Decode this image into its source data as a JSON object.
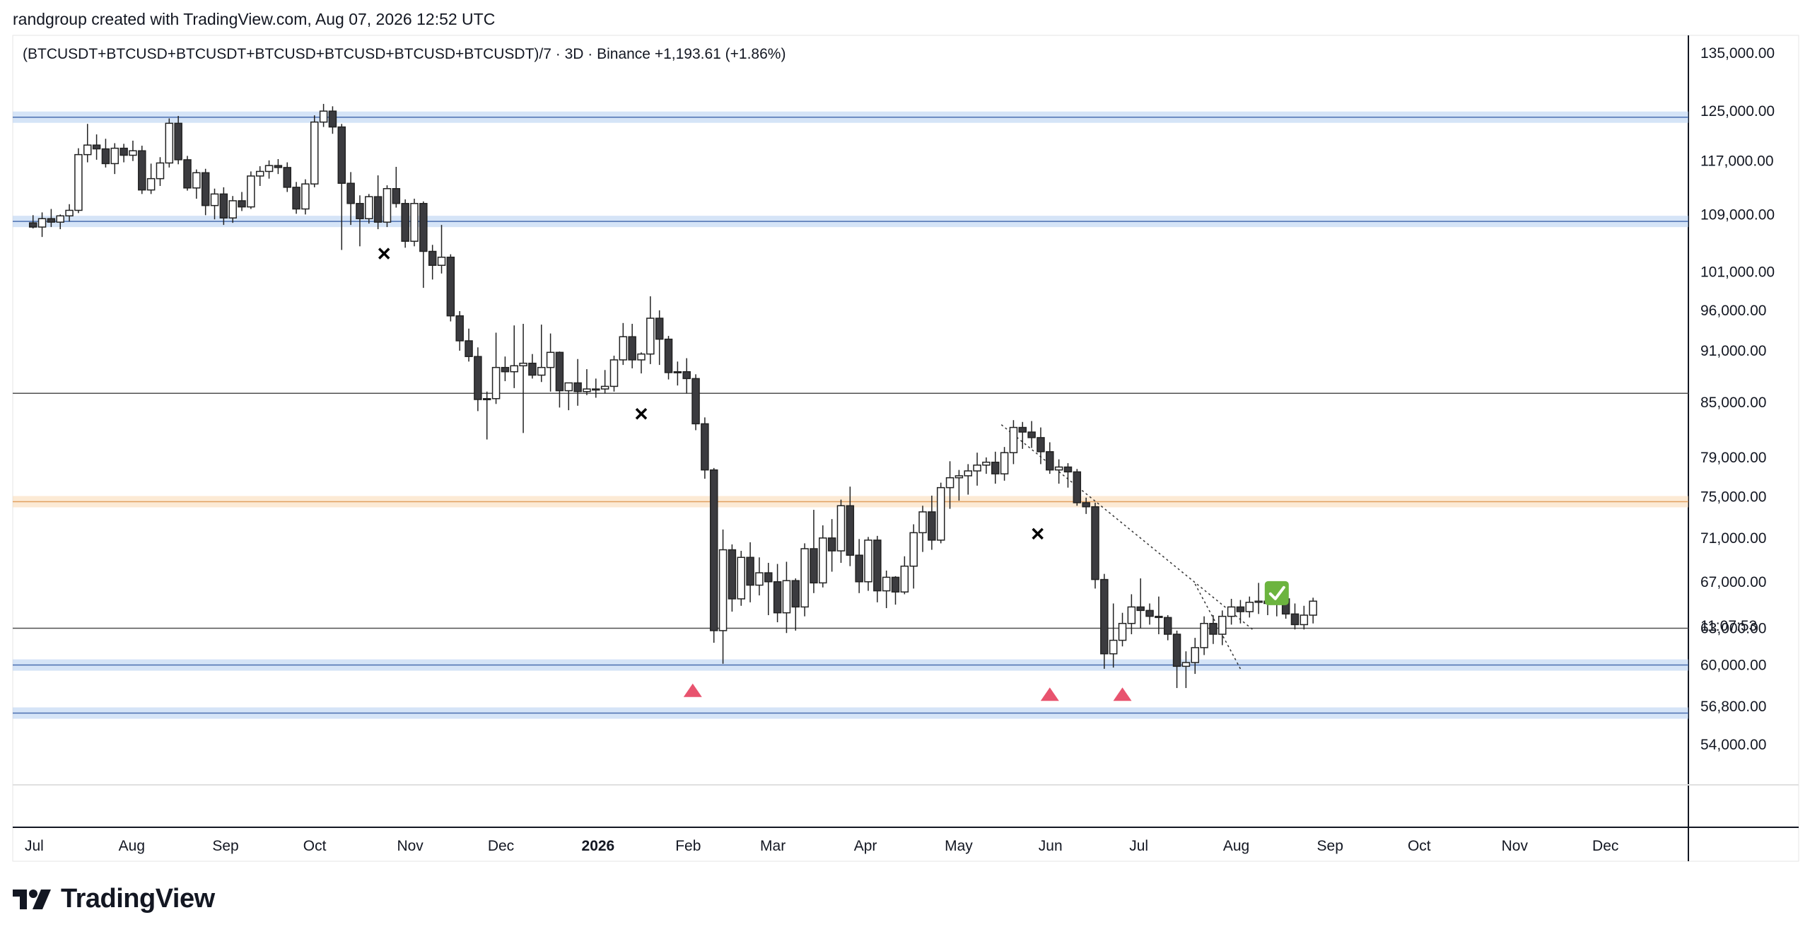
{
  "header": {
    "created_by": "randgroup created with TradingView.com, Aug 07, 2026 12:52 UTC"
  },
  "brand": {
    "name": "TradingView"
  },
  "chart_data": {
    "type": "candlestick",
    "legend": "(BTCUSDT+BTCUSD+BTCUSDT+BTCUSD+BTCUSD+BTCUSD+BTCUSDT)/7 · 3D · Binance  +1,193.61 (+1.86%)",
    "price_axis_labels": [
      "135,000.00",
      "125,000.00",
      "117,000.00",
      "109,000.00",
      "101,000.00",
      "96,000.00",
      "91,000.00",
      "85,000.00",
      "79,000.00",
      "75,000.00",
      "71,000.00",
      "67,000.00",
      "63,000.00",
      "60,000.00",
      "56,800.00",
      "54,000.00"
    ],
    "countdown": "11:07:53",
    "time_axis_labels": [
      {
        "label": "Jul",
        "bold": false
      },
      {
        "label": "Aug",
        "bold": false
      },
      {
        "label": "Sep",
        "bold": false
      },
      {
        "label": "Oct",
        "bold": false
      },
      {
        "label": "Nov",
        "bold": false
      },
      {
        "label": "Dec",
        "bold": false
      },
      {
        "label": "2026",
        "bold": true
      },
      {
        "label": "Feb",
        "bold": false
      },
      {
        "label": "Mar",
        "bold": false
      },
      {
        "label": "Apr",
        "bold": false
      },
      {
        "label": "May",
        "bold": false
      },
      {
        "label": "Jun",
        "bold": false
      },
      {
        "label": "Jul",
        "bold": false
      },
      {
        "label": "Aug",
        "bold": false
      },
      {
        "label": "Sep",
        "bold": false
      },
      {
        "label": "Oct",
        "bold": false
      },
      {
        "label": "Nov",
        "bold": false
      },
      {
        "label": "Dec",
        "bold": false
      }
    ],
    "price_scale": "log",
    "zones": [
      {
        "price": 124000,
        "type": "support-resistance",
        "color": "#b3cdf0"
      },
      {
        "price": 108000,
        "type": "support-resistance",
        "color": "#b3cdf0"
      },
      {
        "price": 74500,
        "type": "key-level",
        "color": "#f9d9b3"
      },
      {
        "price": 60000,
        "type": "support-resistance",
        "color": "#b3cdf0"
      },
      {
        "price": 56300,
        "type": "support-resistance",
        "color": "#b3cdf0"
      }
    ],
    "horizontal_lines": [
      86000,
      63000
    ],
    "markers": [
      {
        "kind": "x",
        "date": "2025-10-24",
        "price": 103500
      },
      {
        "kind": "x",
        "date": "2026-01-17",
        "price": 83700
      },
      {
        "kind": "x",
        "date": "2026-05-28",
        "price": 71400
      },
      {
        "kind": "triangle-up",
        "date": "2026-02-03",
        "price": 58000
      },
      {
        "kind": "triangle-up",
        "date": "2026-06-01",
        "price": 57700
      },
      {
        "kind": "triangle-up",
        "date": "2026-06-25",
        "price": 57700
      },
      {
        "kind": "check",
        "date": "2026-08-15",
        "price": 66000
      }
    ],
    "trendlines": [
      {
        "from": [
          "2026-05-16",
          82500
        ],
        "to": [
          "2026-08-07",
          62900
        ]
      },
      {
        "from": [
          "2026-07-19",
          66800
        ],
        "to": [
          "2026-08-03",
          59700
        ]
      }
    ],
    "candles": [
      {
        "o": 107800,
        "h": 108900,
        "l": 107000,
        "c": 107200
      },
      {
        "o": 107200,
        "h": 109300,
        "l": 105800,
        "c": 108400
      },
      {
        "o": 108400,
        "h": 109800,
        "l": 107200,
        "c": 107900
      },
      {
        "o": 107900,
        "h": 109000,
        "l": 106900,
        "c": 108800
      },
      {
        "o": 108800,
        "h": 110500,
        "l": 108000,
        "c": 109600
      },
      {
        "o": 109600,
        "h": 119000,
        "l": 109200,
        "c": 118000
      },
      {
        "o": 118000,
        "h": 122900,
        "l": 116800,
        "c": 119500
      },
      {
        "o": 119500,
        "h": 121200,
        "l": 117200,
        "c": 118900
      },
      {
        "o": 118900,
        "h": 120500,
        "l": 116000,
        "c": 116600
      },
      {
        "o": 116600,
        "h": 119800,
        "l": 115000,
        "c": 119000
      },
      {
        "o": 119000,
        "h": 119700,
        "l": 116800,
        "c": 117900
      },
      {
        "o": 117900,
        "h": 120200,
        "l": 117000,
        "c": 118600
      },
      {
        "o": 118600,
        "h": 119400,
        "l": 112000,
        "c": 112600
      },
      {
        "o": 112600,
        "h": 116600,
        "l": 112000,
        "c": 114300
      },
      {
        "o": 114300,
        "h": 117600,
        "l": 113200,
        "c": 116700
      },
      {
        "o": 116700,
        "h": 123800,
        "l": 116000,
        "c": 123000
      },
      {
        "o": 123000,
        "h": 124200,
        "l": 116500,
        "c": 117200
      },
      {
        "o": 117200,
        "h": 117800,
        "l": 112500,
        "c": 112900
      },
      {
        "o": 112900,
        "h": 115700,
        "l": 111300,
        "c": 115200
      },
      {
        "o": 115200,
        "h": 115800,
        "l": 108900,
        "c": 110300
      },
      {
        "o": 110300,
        "h": 112800,
        "l": 108300,
        "c": 112000
      },
      {
        "o": 112000,
        "h": 113000,
        "l": 107500,
        "c": 108500
      },
      {
        "o": 108500,
        "h": 111700,
        "l": 107800,
        "c": 111000
      },
      {
        "o": 111000,
        "h": 112300,
        "l": 109500,
        "c": 110100
      },
      {
        "o": 110100,
        "h": 115400,
        "l": 109800,
        "c": 114700
      },
      {
        "o": 114700,
        "h": 116200,
        "l": 113200,
        "c": 115400
      },
      {
        "o": 115400,
        "h": 117100,
        "l": 114300,
        "c": 116300
      },
      {
        "o": 116300,
        "h": 117300,
        "l": 115000,
        "c": 116000
      },
      {
        "o": 116000,
        "h": 116800,
        "l": 112300,
        "c": 113000
      },
      {
        "o": 113000,
        "h": 113800,
        "l": 109100,
        "c": 109800
      },
      {
        "o": 109800,
        "h": 114200,
        "l": 109000,
        "c": 113500
      },
      {
        "o": 113500,
        "h": 124300,
        "l": 113000,
        "c": 123200
      },
      {
        "o": 123200,
        "h": 126200,
        "l": 122400,
        "c": 125000
      },
      {
        "o": 125000,
        "h": 125800,
        "l": 121300,
        "c": 122400
      },
      {
        "o": 122400,
        "h": 122900,
        "l": 104000,
        "c": 113600
      },
      {
        "o": 113600,
        "h": 115300,
        "l": 107500,
        "c": 110600
      },
      {
        "o": 110600,
        "h": 111800,
        "l": 104500,
        "c": 108400
      },
      {
        "o": 108400,
        "h": 112000,
        "l": 107700,
        "c": 111600
      },
      {
        "o": 111600,
        "h": 114800,
        "l": 106900,
        "c": 107900
      },
      {
        "o": 107900,
        "h": 113300,
        "l": 107200,
        "c": 112800
      },
      {
        "o": 112800,
        "h": 116100,
        "l": 110000,
        "c": 110600
      },
      {
        "o": 110600,
        "h": 111200,
        "l": 104300,
        "c": 105200
      },
      {
        "o": 105200,
        "h": 111300,
        "l": 104500,
        "c": 110600
      },
      {
        "o": 110600,
        "h": 110900,
        "l": 98900,
        "c": 103800
      },
      {
        "o": 103800,
        "h": 104700,
        "l": 100000,
        "c": 101900
      },
      {
        "o": 101900,
        "h": 107500,
        "l": 100800,
        "c": 103000
      },
      {
        "o": 103000,
        "h": 103400,
        "l": 94600,
        "c": 95300
      },
      {
        "o": 95300,
        "h": 95900,
        "l": 91000,
        "c": 92200
      },
      {
        "o": 92200,
        "h": 93700,
        "l": 89700,
        "c": 90300
      },
      {
        "o": 90300,
        "h": 91400,
        "l": 84000,
        "c": 85300
      },
      {
        "o": 85300,
        "h": 86200,
        "l": 80900,
        "c": 85400
      },
      {
        "o": 85400,
        "h": 93200,
        "l": 84800,
        "c": 89000
      },
      {
        "o": 89000,
        "h": 90300,
        "l": 87400,
        "c": 88500
      },
      {
        "o": 88500,
        "h": 94100,
        "l": 86600,
        "c": 89200
      },
      {
        "o": 89200,
        "h": 94300,
        "l": 81600,
        "c": 89500
      },
      {
        "o": 89500,
        "h": 90600,
        "l": 87700,
        "c": 88100
      },
      {
        "o": 88100,
        "h": 94200,
        "l": 87300,
        "c": 89000
      },
      {
        "o": 89000,
        "h": 93100,
        "l": 86200,
        "c": 90800
      },
      {
        "o": 90800,
        "h": 90900,
        "l": 84400,
        "c": 86300
      },
      {
        "o": 86300,
        "h": 86900,
        "l": 84100,
        "c": 87200
      },
      {
        "o": 87200,
        "h": 90000,
        "l": 84600,
        "c": 86200
      },
      {
        "o": 86200,
        "h": 88800,
        "l": 85800,
        "c": 86500
      },
      {
        "o": 86500,
        "h": 87700,
        "l": 85500,
        "c": 86500
      },
      {
        "o": 86500,
        "h": 88700,
        "l": 86000,
        "c": 86800
      },
      {
        "o": 86800,
        "h": 90400,
        "l": 86200,
        "c": 89900
      },
      {
        "o": 89900,
        "h": 94400,
        "l": 89300,
        "c": 92700
      },
      {
        "o": 92700,
        "h": 94300,
        "l": 88900,
        "c": 89900
      },
      {
        "o": 89900,
        "h": 90800,
        "l": 88300,
        "c": 90600
      },
      {
        "o": 90600,
        "h": 97800,
        "l": 89400,
        "c": 95000
      },
      {
        "o": 95000,
        "h": 96000,
        "l": 89300,
        "c": 92400
      },
      {
        "o": 92400,
        "h": 92800,
        "l": 87600,
        "c": 88400
      },
      {
        "o": 88400,
        "h": 89700,
        "l": 86900,
        "c": 88500
      },
      {
        "o": 88500,
        "h": 90100,
        "l": 86000,
        "c": 87700
      },
      {
        "o": 87700,
        "h": 88200,
        "l": 81900,
        "c": 82600
      },
      {
        "o": 82600,
        "h": 83300,
        "l": 76800,
        "c": 77700
      },
      {
        "o": 77700,
        "h": 77900,
        "l": 61800,
        "c": 62800
      },
      {
        "o": 62800,
        "h": 71800,
        "l": 60100,
        "c": 69900
      },
      {
        "o": 69900,
        "h": 70400,
        "l": 64400,
        "c": 65500
      },
      {
        "o": 65500,
        "h": 69800,
        "l": 64900,
        "c": 69200
      },
      {
        "o": 69200,
        "h": 70600,
        "l": 65200,
        "c": 66700
      },
      {
        "o": 66700,
        "h": 69200,
        "l": 65800,
        "c": 67800
      },
      {
        "o": 67800,
        "h": 68700,
        "l": 64100,
        "c": 67000
      },
      {
        "o": 67000,
        "h": 68600,
        "l": 63500,
        "c": 64300
      },
      {
        "o": 64300,
        "h": 68800,
        "l": 62600,
        "c": 67100
      },
      {
        "o": 67100,
        "h": 67300,
        "l": 62800,
        "c": 64800
      },
      {
        "o": 64800,
        "h": 70500,
        "l": 64000,
        "c": 70000
      },
      {
        "o": 70000,
        "h": 73700,
        "l": 66000,
        "c": 66900
      },
      {
        "o": 66900,
        "h": 72200,
        "l": 66500,
        "c": 71000
      },
      {
        "o": 71000,
        "h": 72800,
        "l": 67900,
        "c": 69800
      },
      {
        "o": 69800,
        "h": 74700,
        "l": 68700,
        "c": 74100
      },
      {
        "o": 74100,
        "h": 76000,
        "l": 68400,
        "c": 69400
      },
      {
        "o": 69400,
        "h": 70900,
        "l": 66000,
        "c": 67000
      },
      {
        "o": 67000,
        "h": 71100,
        "l": 66200,
        "c": 70800
      },
      {
        "o": 70800,
        "h": 71200,
        "l": 65200,
        "c": 66200
      },
      {
        "o": 66200,
        "h": 68000,
        "l": 64700,
        "c": 67400
      },
      {
        "o": 67400,
        "h": 67500,
        "l": 65000,
        "c": 66100
      },
      {
        "o": 66100,
        "h": 69300,
        "l": 65900,
        "c": 68400
      },
      {
        "o": 68400,
        "h": 72300,
        "l": 66400,
        "c": 71500
      },
      {
        "o": 71500,
        "h": 74100,
        "l": 69700,
        "c": 73500
      },
      {
        "o": 73500,
        "h": 75100,
        "l": 69900,
        "c": 70800
      },
      {
        "o": 70800,
        "h": 76400,
        "l": 70500,
        "c": 75900
      },
      {
        "o": 75900,
        "h": 78600,
        "l": 73800,
        "c": 76900
      },
      {
        "o": 76900,
        "h": 77700,
        "l": 74600,
        "c": 77100
      },
      {
        "o": 77100,
        "h": 78300,
        "l": 75200,
        "c": 77600
      },
      {
        "o": 77600,
        "h": 79500,
        "l": 76100,
        "c": 78200
      },
      {
        "o": 78200,
        "h": 79000,
        "l": 77300,
        "c": 78500
      },
      {
        "o": 78500,
        "h": 79600,
        "l": 76300,
        "c": 77300
      },
      {
        "o": 77300,
        "h": 80100,
        "l": 76600,
        "c": 79500
      },
      {
        "o": 79500,
        "h": 83000,
        "l": 78300,
        "c": 82200
      },
      {
        "o": 82200,
        "h": 82800,
        "l": 79900,
        "c": 81700
      },
      {
        "o": 81700,
        "h": 82900,
        "l": 80000,
        "c": 81100
      },
      {
        "o": 81100,
        "h": 82200,
        "l": 78300,
        "c": 79600
      },
      {
        "o": 79600,
        "h": 80600,
        "l": 77300,
        "c": 77700
      },
      {
        "o": 77700,
        "h": 78800,
        "l": 76300,
        "c": 78000
      },
      {
        "o": 78000,
        "h": 78400,
        "l": 75900,
        "c": 77500
      },
      {
        "o": 77500,
        "h": 77800,
        "l": 74100,
        "c": 74400
      },
      {
        "o": 74400,
        "h": 74900,
        "l": 73300,
        "c": 74000
      },
      {
        "o": 74000,
        "h": 74400,
        "l": 66400,
        "c": 67200
      },
      {
        "o": 67200,
        "h": 67700,
        "l": 59700,
        "c": 60900
      },
      {
        "o": 60900,
        "h": 65100,
        "l": 59800,
        "c": 62000
      },
      {
        "o": 62000,
        "h": 64300,
        "l": 61500,
        "c": 63400
      },
      {
        "o": 63400,
        "h": 65900,
        "l": 62500,
        "c": 64800
      },
      {
        "o": 64800,
        "h": 67300,
        "l": 63000,
        "c": 64500
      },
      {
        "o": 64500,
        "h": 65100,
        "l": 63300,
        "c": 64000
      },
      {
        "o": 64000,
        "h": 65700,
        "l": 62500,
        "c": 63900
      },
      {
        "o": 63900,
        "h": 64100,
        "l": 62000,
        "c": 62500
      },
      {
        "o": 62500,
        "h": 62800,
        "l": 58200,
        "c": 59900
      },
      {
        "o": 59900,
        "h": 61100,
        "l": 58200,
        "c": 60200
      },
      {
        "o": 60200,
        "h": 62200,
        "l": 59300,
        "c": 61400
      },
      {
        "o": 61400,
        "h": 64000,
        "l": 60800,
        "c": 63400
      },
      {
        "o": 63400,
        "h": 64100,
        "l": 61700,
        "c": 62500
      },
      {
        "o": 62500,
        "h": 64500,
        "l": 61600,
        "c": 64000
      },
      {
        "o": 64000,
        "h": 65500,
        "l": 63300,
        "c": 64800
      },
      {
        "o": 64800,
        "h": 65400,
        "l": 63400,
        "c": 64400
      },
      {
        "o": 64400,
        "h": 65700,
        "l": 63900,
        "c": 65200
      },
      {
        "o": 65200,
        "h": 66900,
        "l": 64200,
        "c": 65300
      },
      {
        "o": 65300,
        "h": 65800,
        "l": 64100,
        "c": 65100
      },
      {
        "o": 65100,
        "h": 65900,
        "l": 64000,
        "c": 65500
      },
      {
        "o": 65500,
        "h": 65800,
        "l": 63800,
        "c": 64200
      },
      {
        "o": 64200,
        "h": 65100,
        "l": 62900,
        "c": 63300
      },
      {
        "o": 63300,
        "h": 64900,
        "l": 62900,
        "c": 64100
      },
      {
        "o": 64100,
        "h": 65600,
        "l": 63400,
        "c": 65300
      }
    ]
  }
}
